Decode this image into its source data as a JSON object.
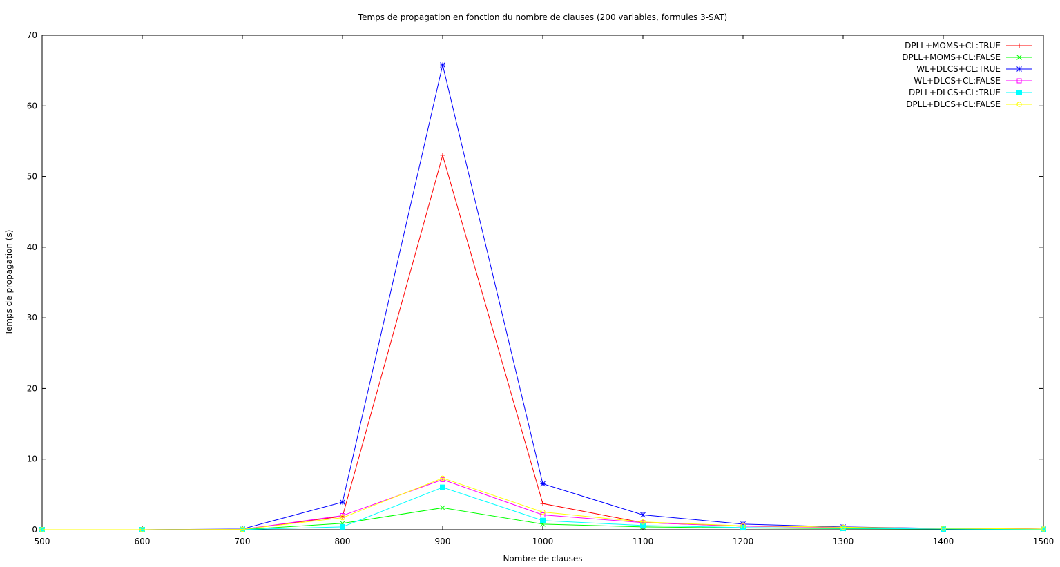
{
  "chart_data": {
    "type": "line",
    "title": "Temps de propagation en fonction du nombre de clauses (200 variables, formules 3-SAT)",
    "xlabel": "Nombre de clauses",
    "ylabel": "Temps de propagation (s)",
    "xlim": [
      500,
      1500
    ],
    "ylim": [
      0,
      70
    ],
    "x_ticks": [
      "500",
      "600",
      "700",
      "800",
      "900",
      "1000",
      "1100",
      "1200",
      "1300",
      "1400",
      "1500"
    ],
    "y_ticks": [
      "0",
      "10",
      "20",
      "30",
      "40",
      "50",
      "60",
      "70"
    ],
    "legend_position": "top-right",
    "grid": false,
    "x": [
      500,
      600,
      700,
      800,
      900,
      1000,
      1100,
      1200,
      1300,
      1400,
      1500
    ],
    "series": [
      {
        "name": "DPLL+MOMS+CL:TRUE",
        "color": "#ff0000",
        "marker": "plus",
        "values": [
          0,
          0,
          0.05,
          1.9,
          53.0,
          3.7,
          1.0,
          0.5,
          0.35,
          0.2,
          0.1
        ]
      },
      {
        "name": "DPLL+MOMS+CL:FALSE",
        "color": "#00ff00",
        "marker": "cross",
        "values": [
          0,
          0,
          0.02,
          0.9,
          3.1,
          0.8,
          0.4,
          0.25,
          0.15,
          0.1,
          0.05
        ]
      },
      {
        "name": "WL+DLCS+CL:TRUE",
        "color": "#0000ff",
        "marker": "star",
        "values": [
          0,
          0,
          0.1,
          3.9,
          65.8,
          6.5,
          2.1,
          0.8,
          0.4,
          0.2,
          0.1
        ]
      },
      {
        "name": "WL+DLCS+CL:FALSE",
        "color": "#ff00ff",
        "marker": "square",
        "values": [
          0,
          0,
          0.05,
          2.0,
          7.1,
          2.1,
          1.0,
          0.5,
          0.3,
          0.2,
          0.1
        ]
      },
      {
        "name": "DPLL+DLCS+CL:TRUE",
        "color": "#00ffff",
        "marker": "filled-square",
        "values": [
          0,
          0,
          0.02,
          0.4,
          6.0,
          1.3,
          0.6,
          0.3,
          0.2,
          0.1,
          0.05
        ]
      },
      {
        "name": "DPLL+DLCS+CL:FALSE",
        "color": "#ffff00",
        "marker": "circle",
        "values": [
          0,
          0,
          0.05,
          1.7,
          7.3,
          2.5,
          1.1,
          0.55,
          0.35,
          0.2,
          0.1
        ]
      }
    ]
  }
}
